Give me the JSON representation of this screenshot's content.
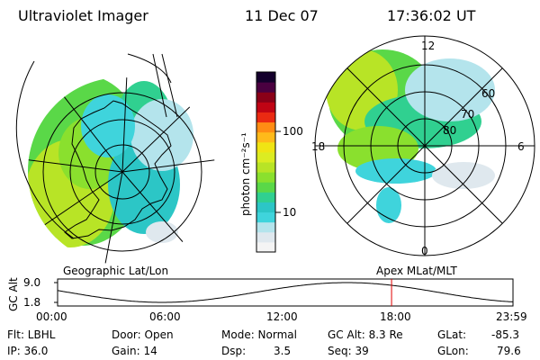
{
  "header": {
    "instrument": "Ultraviolet Imager",
    "date": "11 Dec 07",
    "time": "17:36:02 UT"
  },
  "colorbar": {
    "unit_label": "photon cm⁻²s⁻¹",
    "ticks": [
      {
        "label": "100",
        "value": 100
      },
      {
        "label": "10",
        "value": 10
      }
    ],
    "palette": [
      "#f4f4f4",
      "#dfe8ee",
      "#b4e4ec",
      "#3fd4dc",
      "#2cc6c6",
      "#30d090",
      "#5ad848",
      "#8ae02e",
      "#b8e426",
      "#dcec22",
      "#f0e414",
      "#ffba1a",
      "#ff8c14",
      "#ea2a12",
      "#c00414",
      "#8a0018",
      "#4a0040",
      "#14002c"
    ]
  },
  "left_panel": {
    "label": "Geographic Lat/Lon"
  },
  "right_panel": {
    "label": "Apex MLat/MLT",
    "mlt_labels": {
      "top": "12",
      "right": "6",
      "left": "18",
      "bottom": "0"
    },
    "mlat_labels": [
      "80",
      "70",
      "60"
    ]
  },
  "altitude_plot": {
    "ylabel": "GC Alt",
    "yticks": [
      "9.0",
      "1.8"
    ],
    "xticks": [
      "00:00",
      "06:00",
      "12:00",
      "18:00",
      "23:59"
    ],
    "current_time_hours": 17.6
  },
  "footer": {
    "filter": "Flt: LBHL",
    "ip": "IP: 36.0",
    "door": "Door: Open",
    "gain": "Gain: 14",
    "mode": "Mode: Normal",
    "dsp_label": "Dsp:",
    "dsp_value": "3.5",
    "gc_alt": "GC Alt: 8.3 Re",
    "seq": "Seq: 39",
    "glat_label": "GLat:",
    "glat_value": "-85.3",
    "glon_label": "GLon:",
    "glon_value": "79.6"
  },
  "colors": {
    "marker": "#e00000"
  }
}
